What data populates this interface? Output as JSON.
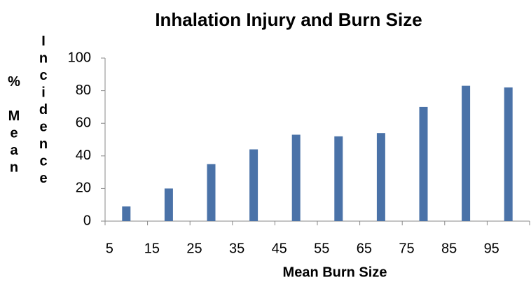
{
  "chart_data": {
    "type": "bar",
    "title": "Inhalation Injury and Burn Size",
    "x_label": "Mean Burn Size",
    "y_label": "% Mean Incidence",
    "categories": [
      "5",
      "15",
      "25",
      "35",
      "45",
      "55",
      "65",
      "75",
      "85",
      "95"
    ],
    "values": [
      9,
      20,
      35,
      44,
      53,
      52,
      54,
      70,
      83,
      82
    ],
    "color": "#4a72a8",
    "ylim": [
      0,
      100
    ],
    "yticks": [
      0,
      20,
      40,
      60,
      80,
      100
    ],
    "grid": false
  }
}
